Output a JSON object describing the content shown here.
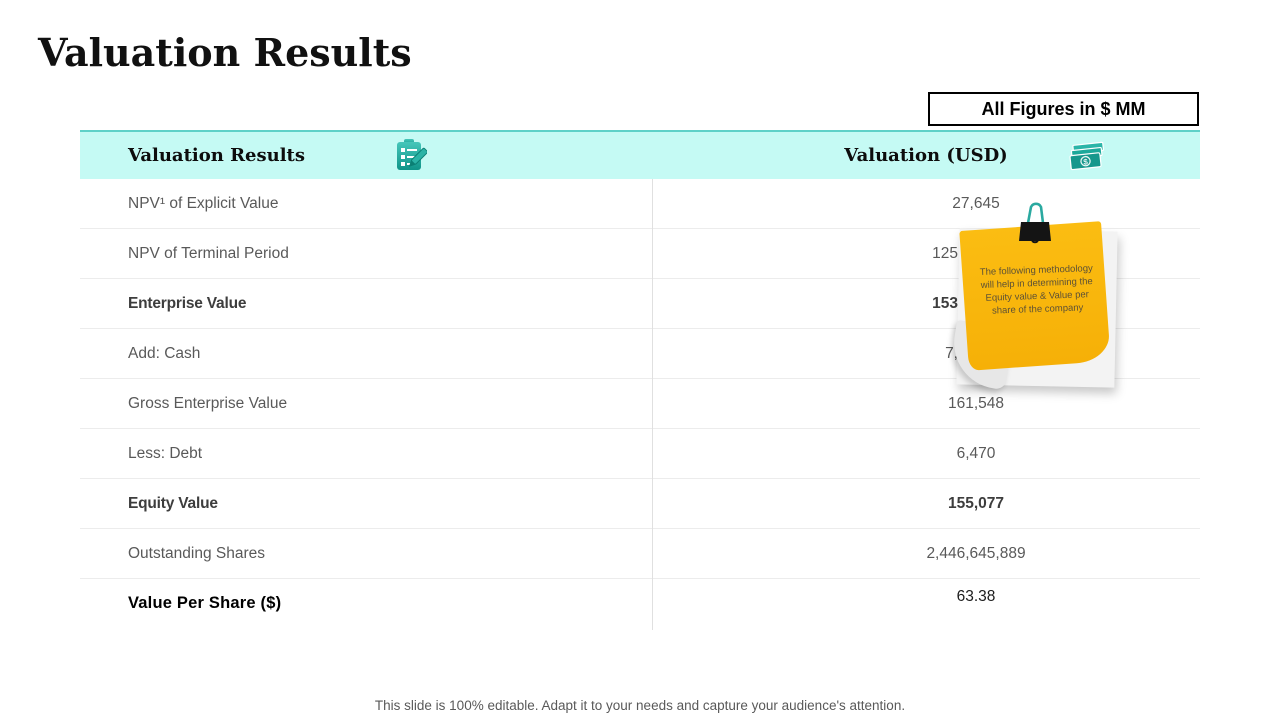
{
  "slide": {
    "title": "Valuation Results",
    "badge": "All Figures in $ MM",
    "footer": "This slide is 100% editable. Adapt it to your needs and capture your audience's attention."
  },
  "table": {
    "header": {
      "col1": "Valuation Results",
      "col1_icon": "clipboard-checklist-icon",
      "col2": "Valuation (USD)",
      "col2_icon": "money-banknotes-icon"
    },
    "rows": [
      {
        "label": "NPV¹ of Explicit Value",
        "value": "27,645"
      },
      {
        "label": "NPV of Terminal Period",
        "value": "125",
        "partial": true
      },
      {
        "label": "Enterprise Value",
        "value": "153",
        "bold": true,
        "partial": true
      },
      {
        "label": "Add: Cash",
        "value": "7,",
        "partial": true
      },
      {
        "label": "Gross Enterprise Value",
        "value": "161,548"
      },
      {
        "label": "Less: Debt",
        "value": "6,470"
      },
      {
        "label": "Equity Value",
        "value": "155,077",
        "bold": true
      },
      {
        "label": "Outstanding Shares",
        "value": "2,446,645,889"
      },
      {
        "label": "Value Per Share ($)",
        "value": "63.38",
        "emphasis": true
      }
    ]
  },
  "sticky_note": {
    "text": "The following methodology will help in determining the Equity value & Value per share of the company",
    "clip_icon": "binder-clip-icon"
  },
  "colors": {
    "accent_teal": "#5ED1C8",
    "header_bg": "#C5FAF4",
    "icon_teal": "#18A096",
    "note_orange": "#F7B412",
    "text_gray": "#595959"
  }
}
